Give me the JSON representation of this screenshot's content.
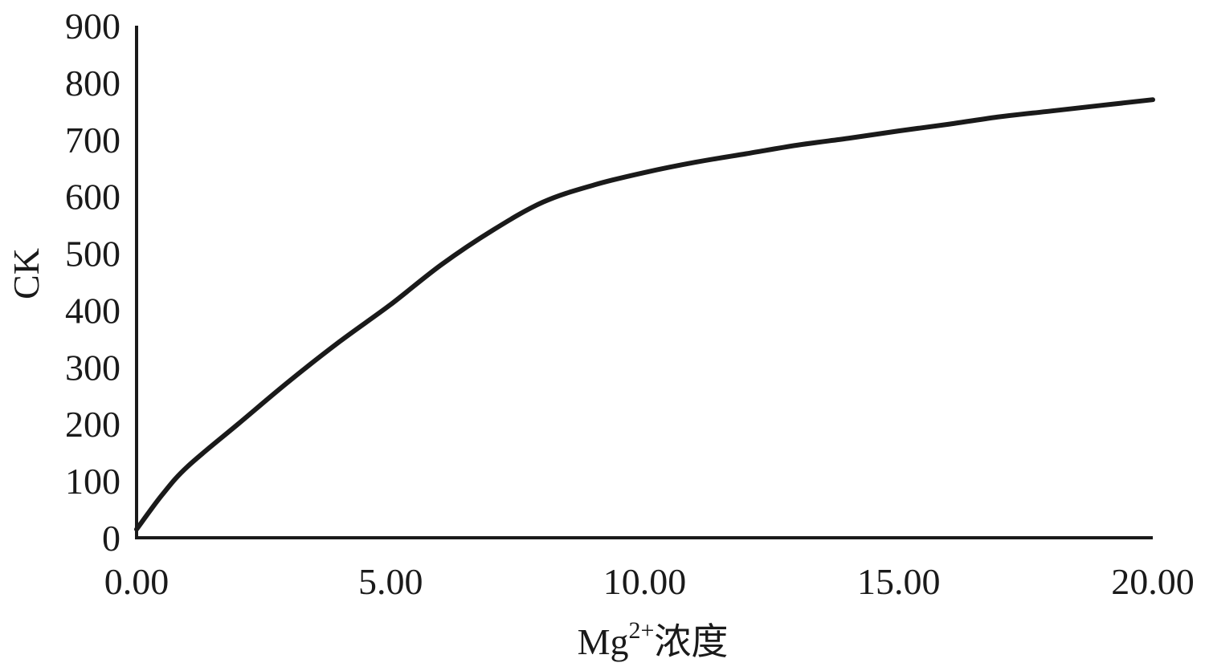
{
  "chart_data": {
    "type": "line",
    "title": "",
    "xlabel": "Mg",
    "xlabel_superscript": "2+",
    "xlabel_suffix": "浓度",
    "ylabel": "CK",
    "xlim": [
      0,
      20
    ],
    "ylim": [
      0,
      900
    ],
    "x_ticks": [
      "0.00",
      "5.00",
      "10.00",
      "15.00",
      "20.00"
    ],
    "x_tick_values": [
      0,
      5,
      10,
      15,
      20
    ],
    "y_ticks": [
      "0",
      "100",
      "200",
      "300",
      "400",
      "500",
      "600",
      "700",
      "800",
      "900"
    ],
    "y_tick_values": [
      0,
      100,
      200,
      300,
      400,
      500,
      600,
      700,
      800,
      900
    ],
    "grid": false,
    "legend": "none",
    "series": [
      {
        "color": "#1a1a1a",
        "x": [
          0,
          0.5,
          1,
          2,
          3,
          4,
          5,
          6,
          7,
          8,
          9,
          10,
          11,
          12,
          13,
          14,
          15,
          16,
          17,
          18,
          19,
          20
        ],
        "y": [
          15,
          75,
          125,
          200,
          275,
          345,
          410,
          480,
          540,
          590,
          620,
          642,
          660,
          675,
          690,
          702,
          715,
          727,
          740,
          750,
          760,
          770
        ]
      }
    ]
  }
}
